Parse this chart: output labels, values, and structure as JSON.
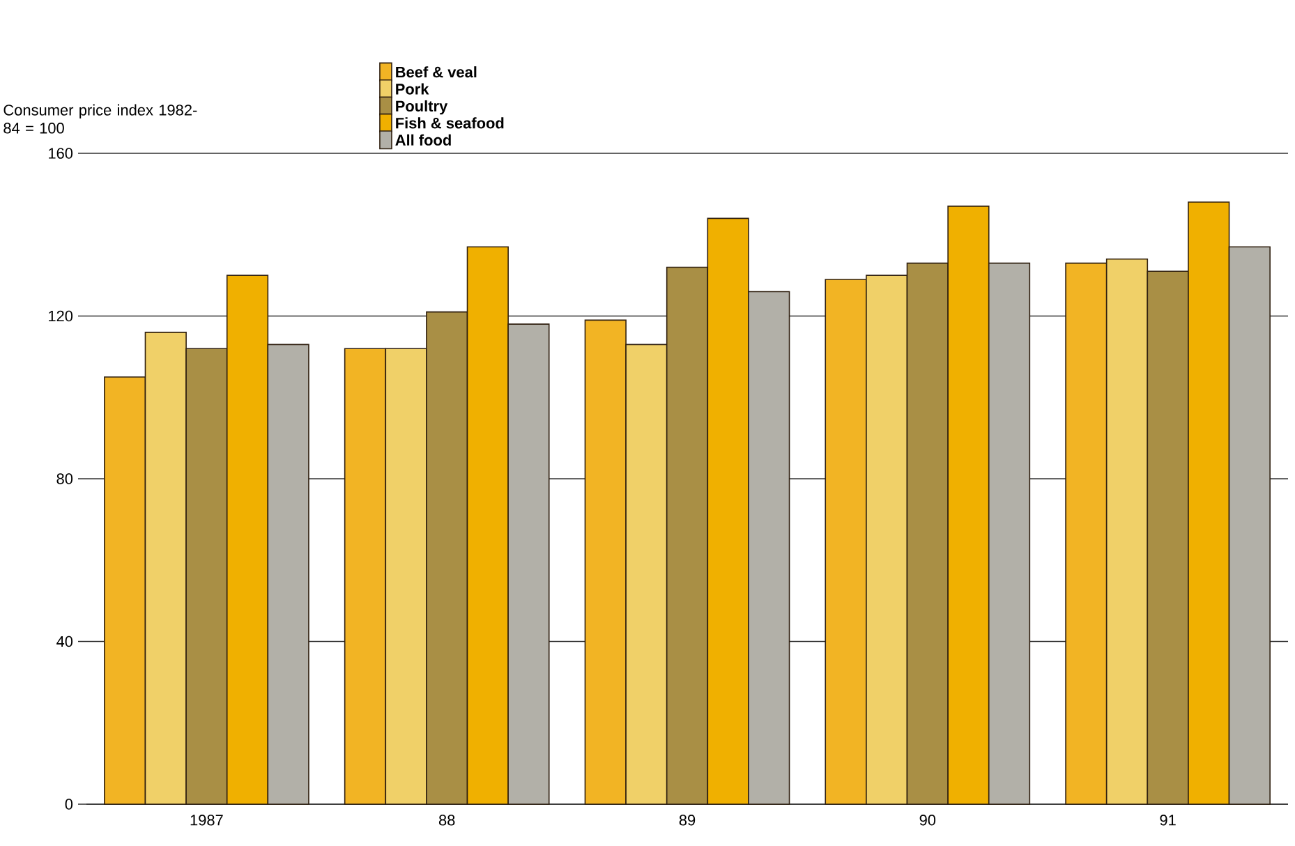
{
  "chart_data": {
    "type": "bar",
    "ylabel": "Consumer price index 1982-84 = 100",
    "categories": [
      "1987",
      "88",
      "89",
      "90",
      "91"
    ],
    "series": [
      {
        "name": "Beef & veal",
        "color": "#f2b424",
        "values": [
          105,
          112,
          119,
          129,
          133
        ]
      },
      {
        "name": "Pork",
        "color": "#f0d068",
        "values": [
          116,
          112,
          113,
          130,
          134
        ]
      },
      {
        "name": "Poultry",
        "color": "#a98f45",
        "values": [
          112,
          121,
          132,
          133,
          131
        ]
      },
      {
        "name": "Fish & seafood",
        "color": "#f0b000",
        "values": [
          130,
          137,
          144,
          147,
          148
        ]
      },
      {
        "name": "All food",
        "color": "#b2b0a8",
        "values": [
          113,
          118,
          126,
          133,
          137
        ]
      }
    ],
    "ylim": [
      0,
      160
    ],
    "yticks": [
      0,
      40,
      80,
      120,
      160
    ],
    "grid": "y",
    "legend": "top"
  }
}
